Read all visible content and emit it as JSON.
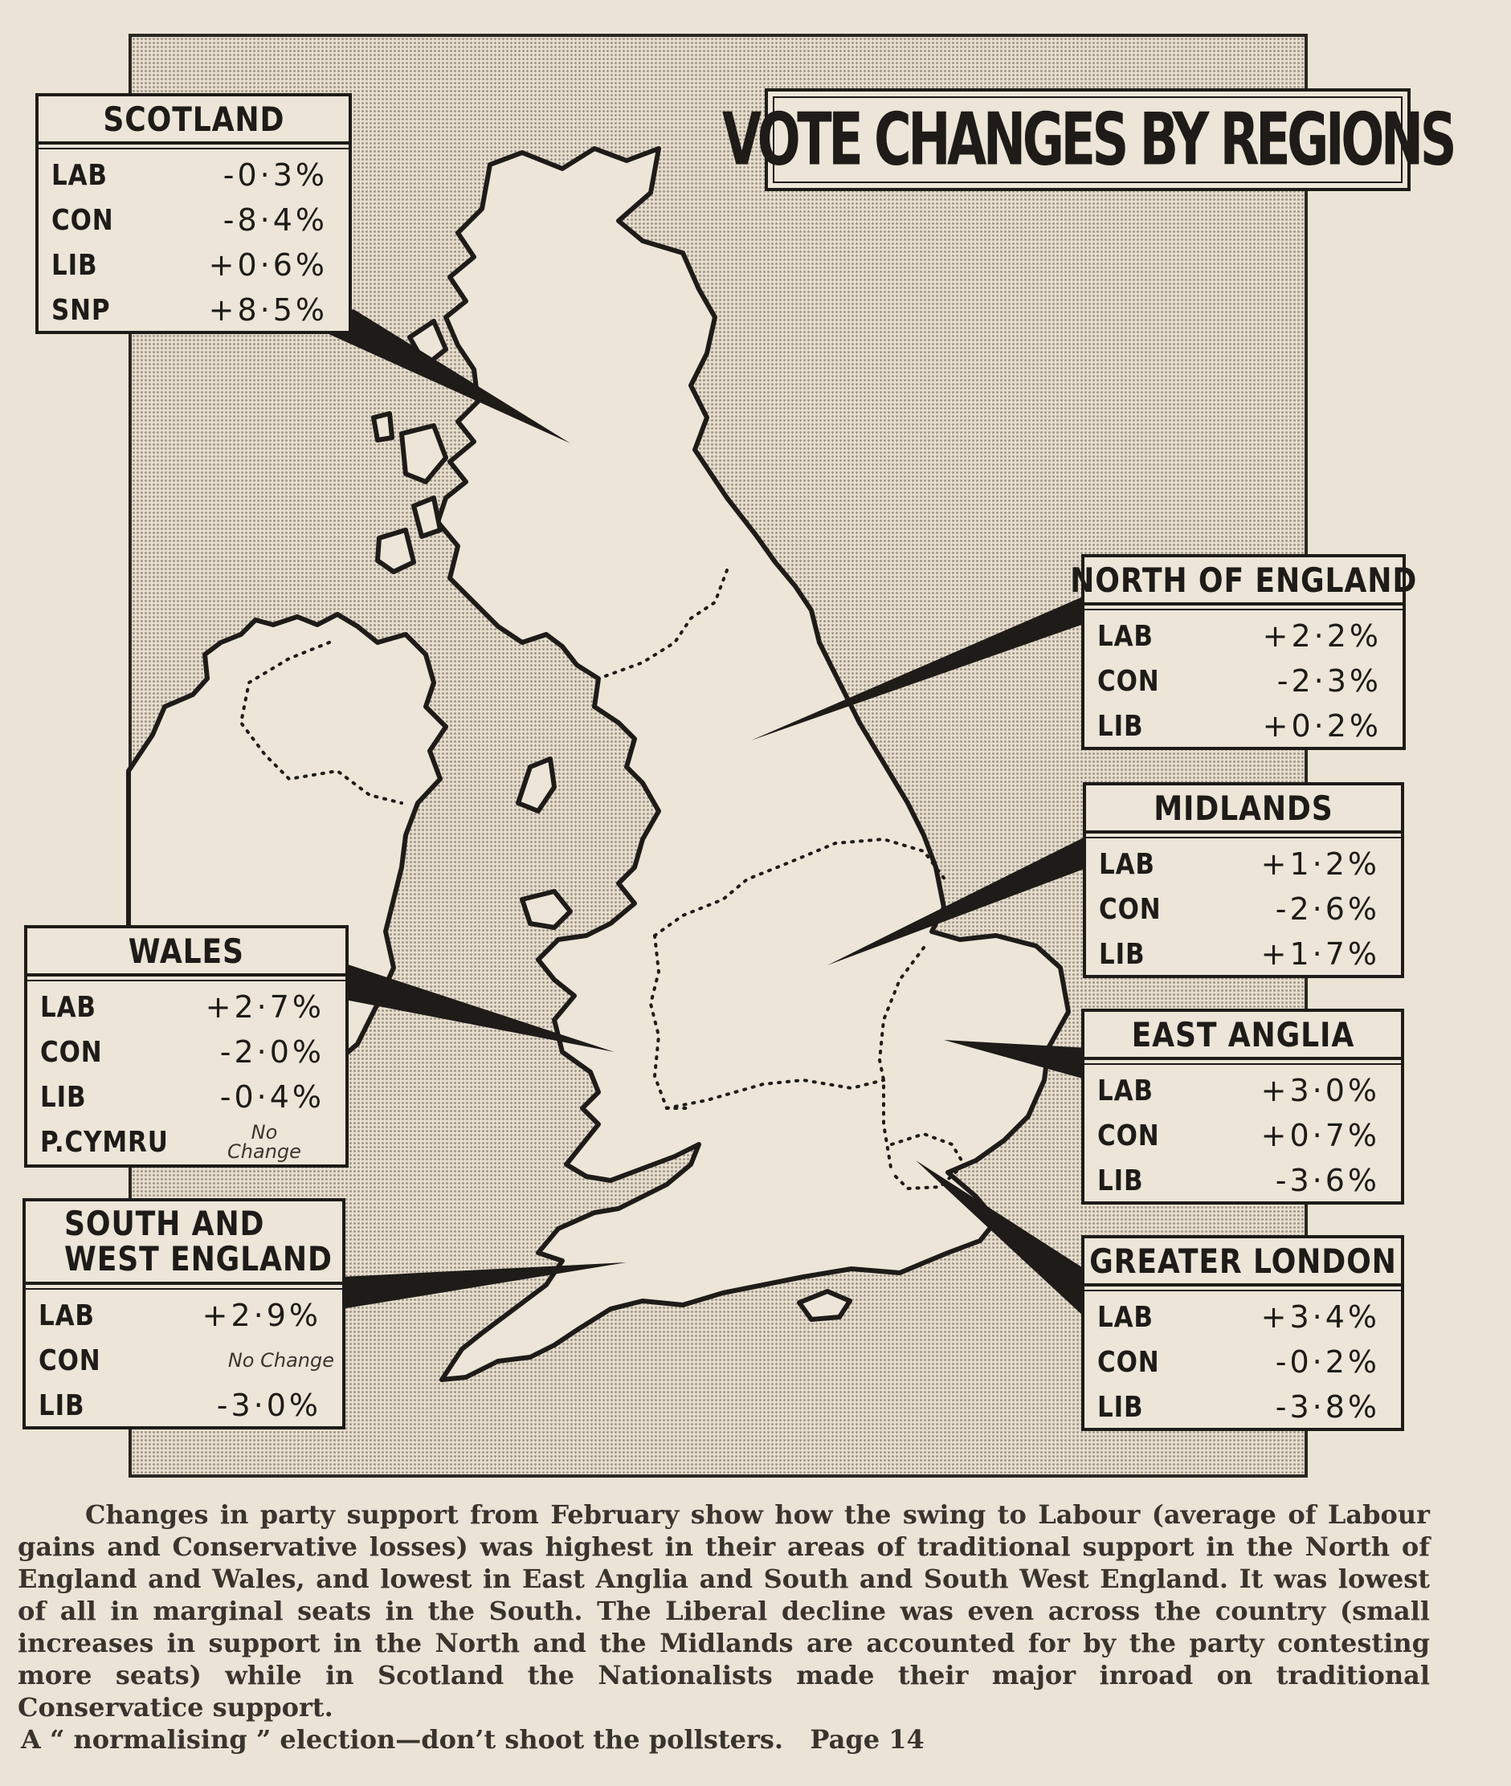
{
  "title": "VOTE CHANGES BY REGIONS",
  "regions": {
    "scotland": {
      "name": "SCOTLAND",
      "rows": [
        {
          "party": "LAB",
          "change": "-0·3%"
        },
        {
          "party": "CON",
          "change": "-8·4%"
        },
        {
          "party": "LIB",
          "change": "+0·6%"
        },
        {
          "party": "SNP",
          "change": "+8·5%"
        }
      ]
    },
    "north_of_england": {
      "name": "NORTH OF ENGLAND",
      "rows": [
        {
          "party": "LAB",
          "change": "+2·2%"
        },
        {
          "party": "CON",
          "change": "-2·3%"
        },
        {
          "party": "LIB",
          "change": "+0·2%"
        }
      ]
    },
    "midlands": {
      "name": "MIDLANDS",
      "rows": [
        {
          "party": "LAB",
          "change": "+1·2%"
        },
        {
          "party": "CON",
          "change": "-2·6%"
        },
        {
          "party": "LIB",
          "change": "+1·7%"
        }
      ]
    },
    "wales": {
      "name": "WALES",
      "rows": [
        {
          "party": "LAB",
          "change": "+2·7%"
        },
        {
          "party": "CON",
          "change": "-2·0%"
        },
        {
          "party": "LIB",
          "change": "-0·4%"
        },
        {
          "party": "P.CYMRU",
          "change": "No Change"
        }
      ]
    },
    "east_anglia": {
      "name": "EAST ANGLIA",
      "rows": [
        {
          "party": "LAB",
          "change": "+3·0%"
        },
        {
          "party": "CON",
          "change": "+0·7%"
        },
        {
          "party": "LIB",
          "change": "-3·6%"
        }
      ]
    },
    "south_west_england": {
      "name": "SOUTH AND WEST ENGLAND",
      "name_line1": "SOUTH AND",
      "name_line2": "WEST ENGLAND",
      "rows": [
        {
          "party": "LAB",
          "change": "+2·9%"
        },
        {
          "party": "CON",
          "change": "No Change"
        },
        {
          "party": "LIB",
          "change": "-3·0%"
        }
      ]
    },
    "greater_london": {
      "name": "GREATER LONDON",
      "rows": [
        {
          "party": "LAB",
          "change": "+3·4%"
        },
        {
          "party": "CON",
          "change": "-0·2%"
        },
        {
          "party": "LIB",
          "change": "-3·8%"
        }
      ]
    }
  },
  "caption": {
    "body": "Changes in party support from February show how the swing to Labour (average of Labour gains and Conservative losses) was highest in their areas of traditional support in the North of England and Wales, and lowest in East Anglia and South and South West England. It was lowest of all in marginal seats in the South. The Liberal decline was even across the country (small increases in support in the North and the Midlands are accounted for by the party contesting more seats) while in Scotland the Nationalists made their major inroad on traditional Conservatice support.",
    "footer": "A “ normalising ” election—don’t shoot the pollsters.   Page 14"
  }
}
